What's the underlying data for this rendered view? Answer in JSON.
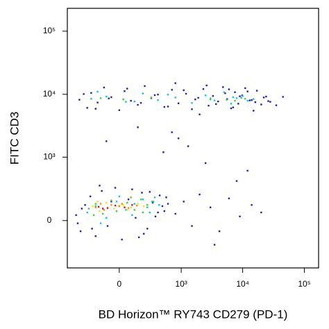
{
  "chart_data": {
    "type": "scatter",
    "x_label": "BD Horizon™ RY743 CD279 (PD-1)",
    "y_label": "FITC  CD3",
    "xscale": "biexponential",
    "yscale": "biexponential",
    "xlim": [
      -680,
      170000
    ],
    "ylim": [
      -545,
      230000
    ],
    "xticks": [
      0,
      {
        "value": 1000,
        "label": "10³"
      },
      {
        "value": 10000,
        "label": "10⁴"
      },
      {
        "value": 100000,
        "label": "10⁵"
      }
    ],
    "yticks": [
      0,
      {
        "value": 1000,
        "label": "10³"
      },
      {
        "value": 10000,
        "label": "10⁴"
      },
      {
        "value": 100000,
        "label": "10⁵"
      }
    ],
    "series": [
      {
        "color": "#1f1fb4",
        "x": [
          -420,
          -300,
          -250,
          -180,
          -120,
          -60,
          0,
          40,
          90,
          150,
          220,
          300,
          400,
          520,
          700,
          900,
          1200,
          1500,
          1900,
          2300,
          2800,
          3300,
          4000,
          4800,
          5600,
          6500,
          7500,
          8500,
          9800,
          11000,
          13000,
          15000,
          17000,
          20000,
          24000,
          28000,
          -350,
          -200,
          -80,
          60,
          180,
          350,
          600,
          1100,
          1700,
          2600,
          3700,
          5200,
          7000,
          9000,
          12000,
          16000,
          22000,
          35000,
          45000,
          800,
          2000,
          6000,
          14000,
          26000,
          -480,
          -400,
          -330,
          -260,
          -200,
          -140,
          -90,
          -30,
          20,
          70,
          130,
          190,
          250,
          320,
          400,
          480,
          560,
          -450,
          -380,
          -160,
          100,
          210,
          360,
          430,
          -240,
          -60,
          160,
          280,
          520,
          600,
          800,
          1100,
          1500,
          2000,
          3000,
          4200,
          6000,
          9000,
          14000,
          20000,
          900,
          1300,
          -100,
          150,
          500,
          2500,
          8000,
          12000,
          700,
          3500
        ],
        "y": [
          8200,
          6100,
          10500,
          7400,
          12800,
          9000,
          5600,
          11200,
          7900,
          6800,
          13500,
          8700,
          9900,
          6300,
          11800,
          7200,
          10200,
          5800,
          8800,
          12100,
          6600,
          9400,
          7700,
          13000,
          8400,
          6000,
          10800,
          7100,
          9600,
          12500,
          8000,
          5500,
          11400,
          6900,
          9200,
          7600,
          10100,
          5900,
          8600,
          12300,
          7300,
          9700,
          6400,
          11600,
          8300,
          13800,
          7000,
          10400,
          6200,
          9300,
          11100,
          7500,
          8900,
          6700,
          9100,
          15000,
          4800,
          12000,
          8100,
          7800,
          40,
          -80,
          120,
          200,
          -120,
          260,
          -40,
          300,
          -150,
          170,
          20,
          240,
          -60,
          140,
          60,
          110,
          190,
          -20,
          90,
          330,
          280,
          -100,
          30,
          210,
          -60,
          150,
          -130,
          250,
          70,
          130,
          50,
          150,
          -40,
          220,
          100,
          -80,
          180,
          30,
          120,
          60,
          2000,
          1500,
          1800,
          3000,
          1200,
          800,
          400,
          600,
          2500,
          -200
        ]
      },
      {
        "color": "#18c0e0",
        "x": [
          -250,
          -100,
          50,
          200,
          400,
          800,
          1500,
          2500,
          3500,
          5000,
          6500,
          8000,
          10000,
          12000,
          -180,
          120,
          600,
          3000,
          7000,
          15000,
          -300,
          -200,
          -100,
          -20,
          50,
          120,
          200,
          280,
          350,
          420,
          -150,
          0,
          100,
          250,
          330
        ],
        "y": [
          8500,
          9200,
          7600,
          10300,
          8100,
          8900,
          7300,
          9600,
          8000,
          10800,
          7100,
          8700,
          9400,
          7900,
          11000,
          7700,
          9900,
          8300,
          9000,
          8400,
          60,
          110,
          20,
          150,
          80,
          130,
          170,
          60,
          190,
          120,
          -20,
          200,
          40,
          100,
          150
        ]
      },
      {
        "color": "#3cd040",
        "x": [
          -150,
          30,
          300,
          3000,
          5500,
          7500,
          9500,
          11000,
          -280,
          -200,
          -130,
          -60,
          0,
          60,
          120,
          180,
          250,
          310,
          -220,
          -20,
          90,
          200
        ],
        "y": [
          8700,
          8300,
          8900,
          8600,
          8200,
          7900,
          8800,
          8500,
          90,
          130,
          50,
          160,
          110,
          140,
          80,
          170,
          120,
          150,
          40,
          70,
          190,
          60
        ]
      },
      {
        "color": "#f0e020",
        "x": [
          -230,
          -160,
          -100,
          -40,
          30,
          90,
          150,
          210,
          -180,
          60
        ],
        "y": [
          110,
          70,
          140,
          90,
          120,
          100,
          130,
          110,
          150,
          80
        ]
      },
      {
        "color": "#ff8c00",
        "x": [
          -200,
          -120,
          -60,
          0,
          70,
          140,
          -150,
          20
        ],
        "y": [
          100,
          80,
          120,
          110,
          95,
          115,
          130,
          130
        ]
      },
      {
        "color": "#e01010",
        "x": [
          -170,
          -90,
          -30,
          40,
          -130,
          100
        ],
        "y": [
          105,
          95,
          115,
          100,
          90,
          120
        ]
      }
    ]
  }
}
